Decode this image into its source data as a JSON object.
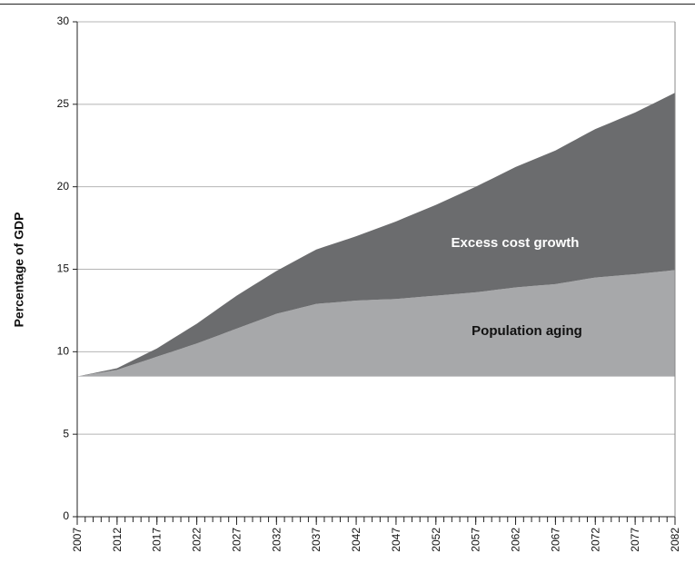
{
  "chart_data": {
    "type": "stacked_area",
    "y_label": "Percentage of GDP",
    "x": [
      2007,
      2008,
      2009,
      2010,
      2011,
      2012,
      2013,
      2014,
      2015,
      2016,
      2017,
      2018,
      2019,
      2020,
      2021,
      2022,
      2023,
      2024,
      2025,
      2026,
      2027,
      2028,
      2029,
      2030,
      2031,
      2032,
      2033,
      2034,
      2035,
      2036,
      2037,
      2038,
      2039,
      2040,
      2041,
      2042,
      2043,
      2044,
      2045,
      2046,
      2047,
      2048,
      2049,
      2050,
      2051,
      2052,
      2053,
      2054,
      2055,
      2056,
      2057,
      2058,
      2059,
      2060,
      2061,
      2062,
      2063,
      2064,
      2065,
      2066,
      2067,
      2068,
      2069,
      2070,
      2071,
      2072,
      2073,
      2074,
      2075,
      2076,
      2077,
      2078,
      2079,
      2080,
      2081,
      2082
    ],
    "series": [
      {
        "name": "Population aging",
        "color": "#a7a8aa",
        "values": [
          8.5,
          8.58,
          8.66,
          8.74,
          8.82,
          8.9,
          9.06,
          9.22,
          9.38,
          9.54,
          9.7,
          9.86,
          10.02,
          10.18,
          10.34,
          10.5,
          10.68,
          10.86,
          11.04,
          11.22,
          11.4,
          11.58,
          11.76,
          11.94,
          12.12,
          12.3,
          12.42,
          12.54,
          12.66,
          12.78,
          12.9,
          12.94,
          12.98,
          13.02,
          13.06,
          13.1,
          13.12,
          13.14,
          13.16,
          13.18,
          13.2,
          13.24,
          13.28,
          13.32,
          13.36,
          13.4,
          13.44,
          13.48,
          13.52,
          13.56,
          13.6,
          13.66,
          13.72,
          13.78,
          13.84,
          13.9,
          13.94,
          13.98,
          14.02,
          14.06,
          14.1,
          14.18,
          14.26,
          14.34,
          14.42,
          14.5,
          14.54,
          14.58,
          14.62,
          14.66,
          14.7,
          14.75,
          14.8,
          14.85,
          14.9,
          14.95
        ]
      },
      {
        "name": "Excess cost growth",
        "color": "#6b6c6e",
        "values": [
          0,
          0.02,
          0.04,
          0.06,
          0.08,
          0.1,
          0.18,
          0.26,
          0.34,
          0.42,
          0.5,
          0.64,
          0.78,
          0.92,
          1.06,
          1.2,
          1.36,
          1.52,
          1.68,
          1.84,
          2.0,
          2.12,
          2.24,
          2.36,
          2.48,
          2.6,
          2.74,
          2.88,
          3.02,
          3.16,
          3.3,
          3.42,
          3.54,
          3.66,
          3.78,
          3.9,
          4.06,
          4.22,
          4.38,
          4.54,
          4.7,
          4.86,
          5.02,
          5.18,
          5.34,
          5.5,
          5.68,
          5.86,
          6.04,
          6.22,
          6.4,
          6.58,
          6.76,
          6.94,
          7.12,
          7.3,
          7.46,
          7.62,
          7.78,
          7.94,
          8.1,
          8.28,
          8.46,
          8.64,
          8.82,
          9.0,
          9.16,
          9.32,
          9.48,
          9.64,
          9.8,
          9.99,
          10.18,
          10.37,
          10.56,
          10.75
        ]
      }
    ],
    "xlim": [
      2007,
      2082
    ],
    "xticks": [
      2007,
      2012,
      2017,
      2022,
      2027,
      2032,
      2037,
      2042,
      2047,
      2052,
      2057,
      2062,
      2067,
      2072,
      2077,
      2082
    ],
    "ylim": [
      0,
      30
    ],
    "yticks": [
      0,
      5,
      10,
      15,
      20,
      25,
      30
    ],
    "grid": true
  }
}
